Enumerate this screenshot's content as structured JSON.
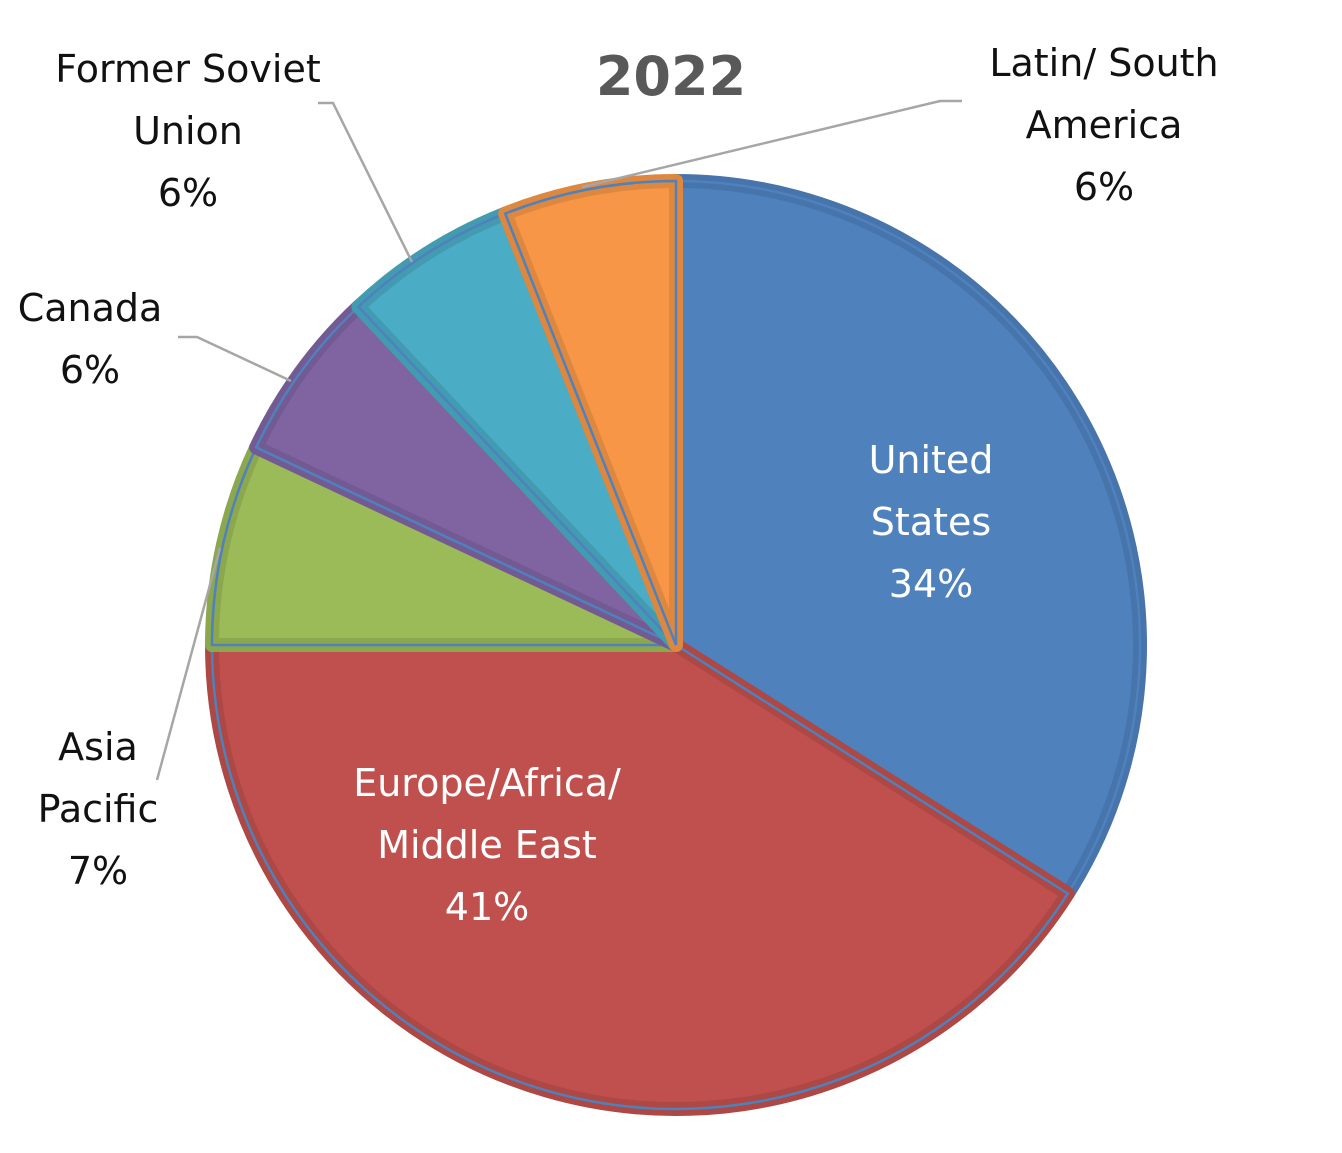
{
  "chart_data": {
    "type": "pie",
    "title": "2022",
    "start": "12 o'clock",
    "direction": "clockwise",
    "slices": [
      {
        "name": "United States",
        "display_lines": [
          "United",
          "States"
        ],
        "value": 34,
        "percent_label": "34%",
        "color": "#4f81bd",
        "edge_color": "#4674ab",
        "label_placement": "inside",
        "label_color": "#ffffff"
      },
      {
        "name": "Europe/Africa/ Middle East",
        "display_lines": [
          "Europe/Africa/",
          "Middle East"
        ],
        "value": 41,
        "percent_label": "41%",
        "color": "#c0504d",
        "edge_color": "#ad4845",
        "label_placement": "inside",
        "label_color": "#ffffff"
      },
      {
        "name": "Asia Pacific",
        "display_lines": [
          "Asia",
          "Pacific"
        ],
        "value": 7,
        "percent_label": "7%",
        "color": "#9bbb59",
        "edge_color": "#8ba84f",
        "label_placement": "outside",
        "label_color": "#111111"
      },
      {
        "name": "Canada",
        "display_lines": [
          "Canada"
        ],
        "value": 6,
        "percent_label": "6%",
        "color": "#8064a2",
        "edge_color": "#735a92",
        "label_placement": "outside",
        "label_color": "#111111"
      },
      {
        "name": "Former Soviet Union",
        "display_lines": [
          "Former Soviet",
          "Union"
        ],
        "value": 6,
        "percent_label": "6%",
        "color": "#4bacc6",
        "edge_color": "#439bb2",
        "label_placement": "outside",
        "label_color": "#111111"
      },
      {
        "name": "Latin/ South America",
        "display_lines": [
          "Latin/ South",
          "America"
        ],
        "value": 6,
        "percent_label": "6%",
        "color": "#f79646",
        "edge_color": "#de873f",
        "label_placement": "outside",
        "label_color": "#111111"
      }
    ],
    "colors": {
      "title": "#595959",
      "leader_line": "#a6a6a6",
      "outline": "#4f81bd"
    }
  }
}
